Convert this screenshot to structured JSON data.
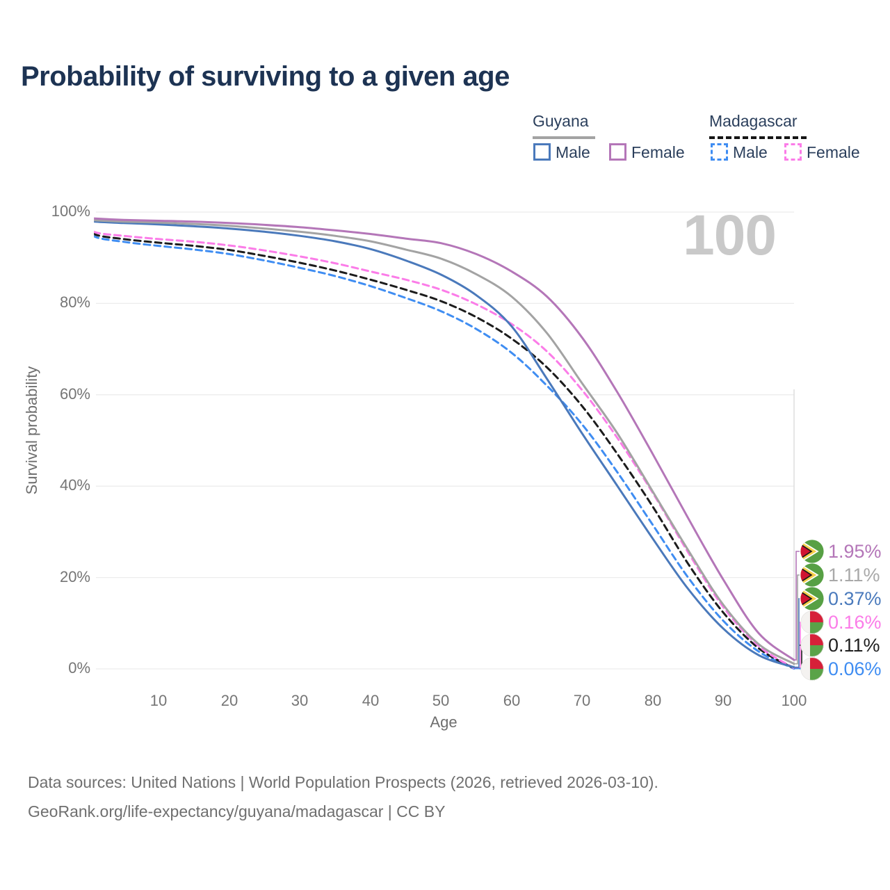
{
  "title": "Probability of surviving to a given age",
  "legend": {
    "groups": [
      {
        "label": "Guyana",
        "line_style": "solid",
        "underline_color": "#a3a3a3",
        "items": [
          {
            "label": "Male",
            "color": "#4a79bb",
            "dashed": false
          },
          {
            "label": "Female",
            "color": "#b476b8",
            "dashed": false
          }
        ]
      },
      {
        "label": "Madagascar",
        "line_style": "dashed",
        "underline_color": "#151515",
        "items": [
          {
            "label": "Male",
            "color": "#3f8df2",
            "dashed": true
          },
          {
            "label": "Female",
            "color": "#fb7ce8",
            "dashed": true
          }
        ]
      }
    ]
  },
  "chart_data": {
    "type": "line",
    "xlabel": "Age",
    "ylabel": "Survival probability",
    "xlim": [
      0,
      100
    ],
    "ylim": [
      0,
      100
    ],
    "grid": "horizontal",
    "legend_position": "top-right",
    "hovered_age_label": "100",
    "yticks": [
      {
        "value": 0,
        "label": "0%"
      },
      {
        "value": 20,
        "label": "20%"
      },
      {
        "value": 40,
        "label": "40%"
      },
      {
        "value": 60,
        "label": "60%"
      },
      {
        "value": 80,
        "label": "80%"
      },
      {
        "value": 100,
        "label": "100%"
      }
    ],
    "xticks": [
      {
        "value": 10,
        "label": "10"
      },
      {
        "value": 20,
        "label": "20"
      },
      {
        "value": 30,
        "label": "30"
      },
      {
        "value": 40,
        "label": "40"
      },
      {
        "value": 50,
        "label": "50"
      },
      {
        "value": 60,
        "label": "60"
      },
      {
        "value": 70,
        "label": "70"
      },
      {
        "value": 80,
        "label": "80"
      },
      {
        "value": 90,
        "label": "90"
      },
      {
        "value": 100,
        "label": "100"
      }
    ],
    "x": [
      0,
      1,
      5,
      10,
      15,
      20,
      25,
      30,
      35,
      40,
      45,
      50,
      55,
      60,
      65,
      70,
      75,
      80,
      85,
      90,
      95,
      100
    ],
    "series": [
      {
        "name": "guyana-female",
        "country": "Guyana",
        "sex": "Female",
        "color": "#b476b8",
        "dashed": false,
        "flag": "guyana",
        "end_label": "1.95%",
        "end_label_color": "#b476b8",
        "values": [
          98.8,
          98.6,
          98.3,
          98.1,
          97.9,
          97.6,
          97.2,
          96.7,
          96.0,
          95.2,
          94.2,
          93.2,
          90.8,
          87.0,
          81.5,
          72.5,
          60.5,
          47.0,
          33.0,
          19.5,
          7.8,
          1.95
        ]
      },
      {
        "name": "guyana-all",
        "country": "Guyana",
        "sex": "Both",
        "color": "#a3a3a3",
        "dashed": false,
        "flag": "guyana",
        "end_label": "1.11%",
        "end_label_color": "#a9a9a9",
        "values": [
          98.5,
          98.2,
          97.9,
          97.7,
          97.4,
          97.0,
          96.4,
          95.7,
          94.8,
          93.6,
          91.8,
          89.8,
          86.4,
          81.5,
          73.5,
          62.5,
          51.5,
          38.8,
          26.0,
          14.0,
          5.4,
          1.11
        ]
      },
      {
        "name": "guyana-male",
        "country": "Guyana",
        "sex": "Male",
        "color": "#4a79bb",
        "dashed": false,
        "flag": "guyana",
        "end_label": "0.37%",
        "end_label_color": "#4a7abc",
        "values": [
          98.2,
          97.9,
          97.6,
          97.3,
          96.9,
          96.4,
          95.7,
          94.8,
          93.6,
          91.9,
          89.4,
          86.3,
          81.8,
          75.0,
          63.5,
          51.5,
          40.0,
          28.5,
          17.5,
          8.8,
          3.0,
          0.37
        ]
      },
      {
        "name": "madagascar-female",
        "country": "Madagascar",
        "sex": "Female",
        "color": "#fb7ce8",
        "dashed": true,
        "flag": "madagascar",
        "end_label": "0.16%",
        "end_label_color": "#fb7ce8",
        "values": [
          97.5,
          95.6,
          94.8,
          94.1,
          93.5,
          92.7,
          91.6,
          90.3,
          88.8,
          87.0,
          85.2,
          83.0,
          79.8,
          75.5,
          69.5,
          61.0,
          50.5,
          38.5,
          25.5,
          13.5,
          5.0,
          0.16
        ]
      },
      {
        "name": "madagascar-all",
        "country": "Madagascar",
        "sex": "Both",
        "color": "#1c1c1c",
        "dashed": true,
        "flag": "madagascar",
        "end_label": "0.11%",
        "end_label_color": "#1f1f1f",
        "values": [
          97.2,
          95.1,
          94.1,
          93.3,
          92.6,
          91.7,
          90.4,
          88.9,
          87.2,
          85.2,
          83.0,
          80.5,
          77.0,
          72.3,
          66.0,
          57.5,
          47.0,
          35.5,
          23.0,
          12.3,
          4.5,
          0.11
        ]
      },
      {
        "name": "madagascar-male",
        "country": "Madagascar",
        "sex": "Male",
        "color": "#3f8df2",
        "dashed": true,
        "flag": "madagascar",
        "end_label": "0.06%",
        "end_label_color": "#3f8df2",
        "values": [
          96.9,
          94.6,
          93.5,
          92.6,
          91.8,
          90.8,
          89.4,
          87.8,
          86.0,
          83.8,
          81.2,
          78.3,
          74.4,
          69.2,
          62.0,
          53.5,
          43.0,
          31.5,
          20.0,
          10.5,
          3.8,
          0.06
        ]
      }
    ],
    "colors": {
      "grid": "#ececec",
      "end_line": "#dedede",
      "tick_text": "#757575",
      "axis_title_text": "#6e6e6e",
      "watermark": "#c9c9c9"
    },
    "flag_colors": {
      "guyana_green": "#57a044",
      "guyana_yellow": "#f6cf4a",
      "guyana_red": "#d01331",
      "madagascar_white": "#f4f2f0",
      "madagascar_red": "#d62039",
      "madagascar_green": "#5aa348"
    }
  },
  "footer": {
    "line1": "Data sources: United Nations | World Population Prospects (2026, retrieved 2026-03-10).",
    "line2": "GeoRank.org/life-expectancy/guyana/madagascar | CC BY"
  }
}
